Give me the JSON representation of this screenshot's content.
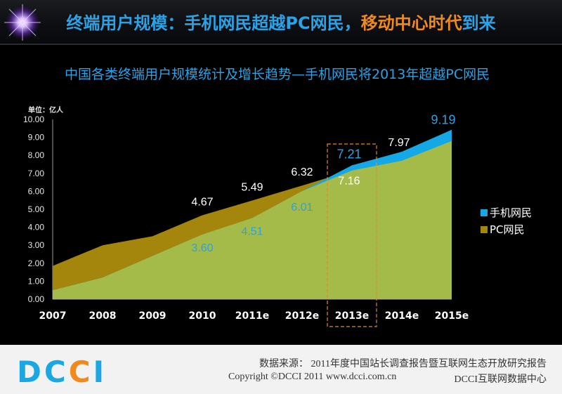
{
  "header": {
    "title_part1": "终端用户规模：手机网民超越PC网民，",
    "title_part2": "移动中心时代",
    "title_part3": "到来"
  },
  "chart_title": "中国各类终端用户规模统计及增长趋势—手机网民将2013年超越PC网民",
  "chart_data": {
    "type": "area",
    "unit_label": "单位：亿人",
    "categories": [
      "2007",
      "2008",
      "2009",
      "2010",
      "2011e",
      "2012e",
      "2013e",
      "2014e",
      "2015e"
    ],
    "y_ticks": [
      "0.00",
      "1.00",
      "2.00",
      "3.00",
      "4.00",
      "5.00",
      "6.00",
      "7.00",
      "8.00",
      "9.00",
      "10.00"
    ],
    "ylim": [
      0,
      10
    ],
    "series": [
      {
        "name": "PC网民",
        "values": [
          1.85,
          3.0,
          3.5,
          4.67,
          5.49,
          6.32,
          7.16,
          7.7,
          8.8
        ]
      },
      {
        "name": "手机网民",
        "values": [
          0.5,
          1.2,
          2.4,
          3.6,
          4.51,
          6.01,
          7.21,
          7.97,
          9.19
        ]
      }
    ],
    "data_labels": [
      {
        "series": 0,
        "index": 3,
        "text": "4.67"
      },
      {
        "series": 0,
        "index": 4,
        "text": "5.49"
      },
      {
        "series": 0,
        "index": 5,
        "text": "6.32"
      },
      {
        "series": 0,
        "index": 6,
        "text": "7.16"
      },
      {
        "series": 1,
        "index": 3,
        "text": "3.60"
      },
      {
        "series": 1,
        "index": 4,
        "text": "4.51"
      },
      {
        "series": 1,
        "index": 5,
        "text": "6.01"
      },
      {
        "series": 1,
        "index": 6,
        "text": "7.21"
      },
      {
        "series": 1,
        "index": 7,
        "text": "7.97"
      },
      {
        "series": 1,
        "index": 8,
        "text": "9.19"
      }
    ],
    "highlight_category": "2013e",
    "legend_position": "right",
    "colors": {
      "pc_area": "#a4860c",
      "mobile_area": "#a5bb49",
      "mobile_edge": "#14a8e6",
      "blue_label": "#2aa2e6",
      "highlight_box": "#e08a2a"
    }
  },
  "footer": {
    "source": "数据来源： 2011年度中国站长调查报告暨互联网生态开放研究报告",
    "copyright": "Copyright ©DCCI 2011 www.dcci.com.cn",
    "org": "DCCI互联网数据中心",
    "logo_blue": "DC",
    "logo_orange": "C",
    "logo_blue2": "I"
  }
}
